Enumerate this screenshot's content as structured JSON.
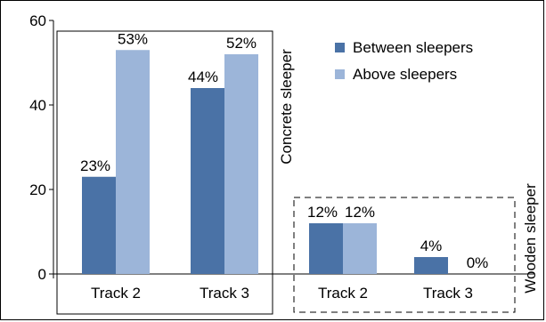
{
  "chart_data": {
    "type": "bar",
    "categories": [
      "Track 2",
      "Track 3",
      "Track 2",
      "Track 3"
    ],
    "series": [
      {
        "name": "Between sleepers",
        "values": [
          23,
          44,
          12,
          4
        ],
        "labels": [
          "23%",
          "44%",
          "12%",
          "4%"
        ],
        "color": "#4a72a6"
      },
      {
        "name": "Above sleepers",
        "values": [
          53,
          52,
          12,
          0
        ],
        "labels": [
          "53%",
          "52%",
          "12%",
          "0%"
        ],
        "color": "#9cb5d9"
      }
    ],
    "ylim": [
      0,
      60
    ],
    "yticks": [
      "0",
      "20",
      "40",
      "60"
    ],
    "groups": [
      {
        "label": "Concrete sleeper",
        "categories": [
          0,
          1
        ],
        "border": "solid"
      },
      {
        "label": "Wooden sleeper",
        "categories": [
          2,
          3
        ],
        "border": "dashed"
      }
    ],
    "legend_position": "top-right",
    "grid": false
  }
}
